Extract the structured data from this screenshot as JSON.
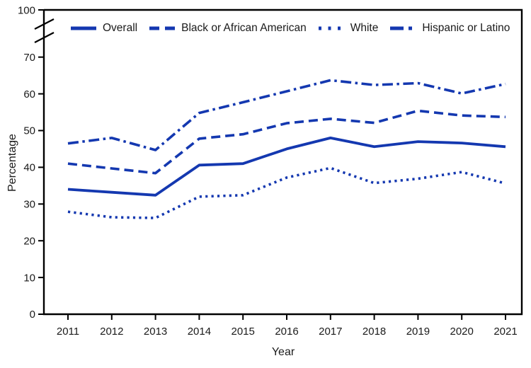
{
  "figure": {
    "accent_color": "#1438b0",
    "axis_color": "#000000",
    "text_color": "#1a1a1a"
  },
  "chart_data": {
    "type": "line",
    "title": "",
    "xlabel": "Year",
    "ylabel": "Percentage",
    "x": [
      "2011",
      "2012",
      "2013",
      "2014",
      "2015",
      "2016",
      "2017",
      "2018",
      "2019",
      "2020",
      "2021"
    ],
    "series": [
      {
        "name": "Overall",
        "dash": "solid",
        "values": [
          34.0,
          33.2,
          32.4,
          40.6,
          41.0,
          45.0,
          48.0,
          45.6,
          47.0,
          46.6,
          45.6
        ]
      },
      {
        "name": "Black or African American",
        "dash": "dashed",
        "values": [
          41.0,
          39.7,
          38.4,
          47.8,
          49.0,
          52.0,
          53.2,
          52.1,
          55.4,
          54.1,
          53.7
        ]
      },
      {
        "name": "White",
        "dash": "dotted",
        "values": [
          27.9,
          26.4,
          26.2,
          32.0,
          32.4,
          37.2,
          39.8,
          35.7,
          36.9,
          38.7,
          35.6
        ]
      },
      {
        "name": "Hispanic or Latino",
        "dash": "dashdot",
        "values": [
          46.5,
          48.0,
          44.7,
          54.8,
          57.7,
          60.7,
          63.7,
          62.4,
          62.9,
          60.1,
          62.7
        ]
      }
    ],
    "line_color": "#1438b0",
    "y_axis": {
      "ticks": [
        0,
        10,
        20,
        30,
        40,
        50,
        60,
        70
      ],
      "break_after": 70,
      "top_tick_label": "100"
    },
    "ylim": [
      0,
      100
    ],
    "grid": false,
    "legend_position": "top"
  }
}
